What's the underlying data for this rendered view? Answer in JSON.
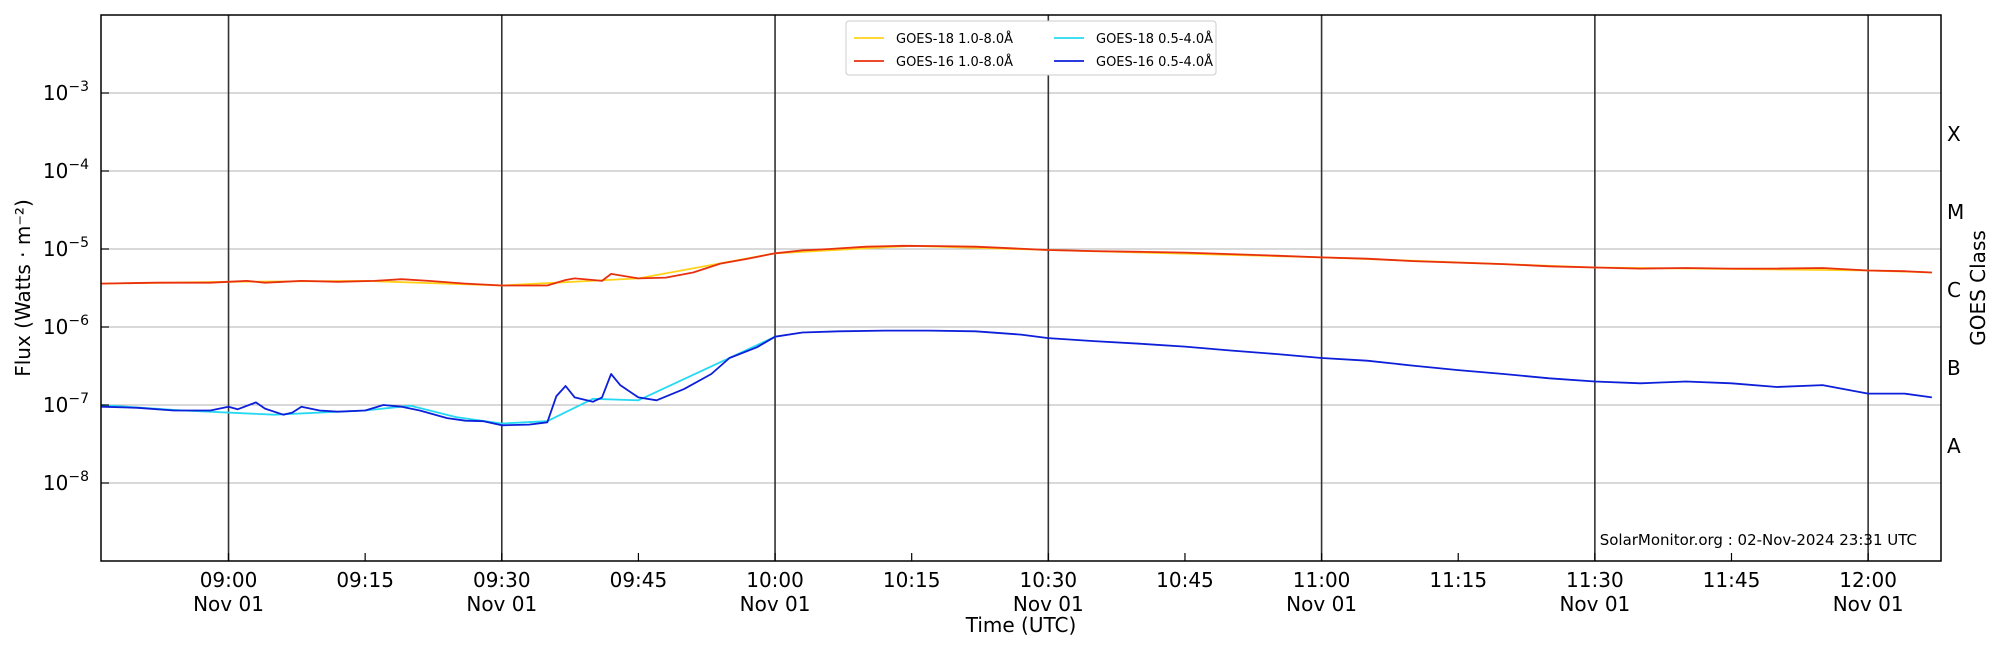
{
  "chart_data": {
    "type": "line",
    "yscale": "log",
    "ylim": [
      1e-09,
      0.01
    ],
    "xlim": [
      "2024-11-01 08:46",
      "2024-11-01 12:08"
    ],
    "xlabel": "Time (UTC)",
    "ylabel": "Flux (Watts · m⁻²)",
    "ylabel_right": "GOES Class",
    "grid": "horizontal",
    "legend_position": "top-center",
    "annotation": "SolarMonitor.org : 02-Nov-2024 23:31 UTC",
    "y_ticks": [
      {
        "value": 1e-08,
        "base": "10",
        "exp": "−8"
      },
      {
        "value": 1e-07,
        "base": "10",
        "exp": "−7"
      },
      {
        "value": 1e-06,
        "base": "10",
        "exp": "−6"
      },
      {
        "value": 1e-05,
        "base": "10",
        "exp": "−5"
      },
      {
        "value": 0.0001,
        "base": "10",
        "exp": "−4"
      },
      {
        "value": 0.001,
        "base": "10",
        "exp": "−3"
      }
    ],
    "x_ticks": [
      {
        "time": "2024-11-01 09:00",
        "label": "09:00",
        "sublabel": "Nov 01"
      },
      {
        "time": "2024-11-01 09:15",
        "label": "09:15",
        "sublabel": ""
      },
      {
        "time": "2024-11-01 09:30",
        "label": "09:30",
        "sublabel": "Nov 01"
      },
      {
        "time": "2024-11-01 09:45",
        "label": "09:45",
        "sublabel": ""
      },
      {
        "time": "2024-11-01 10:00",
        "label": "10:00",
        "sublabel": "Nov 01"
      },
      {
        "time": "2024-11-01 10:15",
        "label": "10:15",
        "sublabel": ""
      },
      {
        "time": "2024-11-01 10:30",
        "label": "10:30",
        "sublabel": "Nov 01"
      },
      {
        "time": "2024-11-01 10:45",
        "label": "10:45",
        "sublabel": ""
      },
      {
        "time": "2024-11-01 11:00",
        "label": "11:00",
        "sublabel": "Nov 01"
      },
      {
        "time": "2024-11-01 11:15",
        "label": "11:15",
        "sublabel": ""
      },
      {
        "time": "2024-11-01 11:30",
        "label": "11:30",
        "sublabel": "Nov 01"
      },
      {
        "time": "2024-11-01 11:45",
        "label": "11:45",
        "sublabel": ""
      },
      {
        "time": "2024-11-01 12:00",
        "label": "12:00",
        "sublabel": "Nov 01"
      }
    ],
    "vertical_lines": [
      "2024-11-01 09:00",
      "2024-11-01 09:30",
      "2024-11-01 10:00",
      "2024-11-01 10:30",
      "2024-11-01 11:00",
      "2024-11-01 11:30",
      "2024-11-01 12:00"
    ],
    "class_labels": [
      {
        "label": "X",
        "flux": 0.0003
      },
      {
        "label": "M",
        "flux": 3e-05
      },
      {
        "label": "C",
        "flux": 3e-06
      },
      {
        "label": "B",
        "flux": 3e-07
      },
      {
        "label": "A",
        "flux": 3e-08
      }
    ],
    "series": [
      {
        "name": "GOES-18 1.0-8.0Å",
        "color": "#ffd21a",
        "x": [
          "2024-11-01 08:46",
          "2024-11-01 09:00",
          "2024-11-01 09:15",
          "2024-11-01 09:30",
          "2024-11-01 09:45",
          "2024-11-01 10:00",
          "2024-11-01 10:15",
          "2024-11-01 10:30",
          "2024-11-01 11:00",
          "2024-11-01 11:30",
          "2024-11-01 12:00",
          "2024-11-01 12:07"
        ],
        "y": [
          3.6e-06,
          3.8e-06,
          3.9e-06,
          3.4e-06,
          4.2e-06,
          8.8e-06,
          1.1e-05,
          9.7e-06,
          7.8e-06,
          5.8e-06,
          5.3e-06,
          5e-06
        ]
      },
      {
        "name": "GOES-18 0.5-4.0Å",
        "color": "#26d9f2",
        "x": [
          "2024-11-01 08:46",
          "2024-11-01 08:55",
          "2024-11-01 09:05",
          "2024-11-01 09:15",
          "2024-11-01 09:20",
          "2024-11-01 09:25",
          "2024-11-01 09:30",
          "2024-11-01 09:35",
          "2024-11-01 09:40",
          "2024-11-01 09:45",
          "2024-11-01 10:00"
        ],
        "y": [
          1e-07,
          8.5e-08,
          7.5e-08,
          8.5e-08,
          9.8e-08,
          7e-08,
          5.8e-08,
          6.2e-08,
          1.2e-07,
          1.15e-07,
          7.5e-07
        ]
      },
      {
        "name": "GOES-16 1.0-8.0Å",
        "color": "#e8300f",
        "x": [
          "2024-11-01 08:46",
          "2024-11-01 08:52",
          "2024-11-01 08:58",
          "2024-11-01 09:00",
          "2024-11-01 09:02",
          "2024-11-01 09:04",
          "2024-11-01 09:06",
          "2024-11-01 09:08",
          "2024-11-01 09:12",
          "2024-11-01 09:16",
          "2024-11-01 09:19",
          "2024-11-01 09:22",
          "2024-11-01 09:26",
          "2024-11-01 09:30",
          "2024-11-01 09:35",
          "2024-11-01 09:37",
          "2024-11-01 09:38",
          "2024-11-01 09:40",
          "2024-11-01 09:41",
          "2024-11-01 09:42",
          "2024-11-01 09:45",
          "2024-11-01 09:48",
          "2024-11-01 09:51",
          "2024-11-01 09:54",
          "2024-11-01 09:57",
          "2024-11-01 10:00",
          "2024-11-01 10:03",
          "2024-11-01 10:06",
          "2024-11-01 10:10",
          "2024-11-01 10:14",
          "2024-11-01 10:18",
          "2024-11-01 10:22",
          "2024-11-01 10:26",
          "2024-11-01 10:30",
          "2024-11-01 10:35",
          "2024-11-01 10:40",
          "2024-11-01 10:45",
          "2024-11-01 10:50",
          "2024-11-01 10:55",
          "2024-11-01 11:00",
          "2024-11-01 11:05",
          "2024-11-01 11:10",
          "2024-11-01 11:15",
          "2024-11-01 11:20",
          "2024-11-01 11:25",
          "2024-11-01 11:30",
          "2024-11-01 11:35",
          "2024-11-01 11:40",
          "2024-11-01 11:45",
          "2024-11-01 11:50",
          "2024-11-01 11:55",
          "2024-11-01 12:00",
          "2024-11-01 12:04",
          "2024-11-01 12:07"
        ],
        "y": [
          3.6e-06,
          3.7e-06,
          3.7e-06,
          3.8e-06,
          3.9e-06,
          3.7e-06,
          3.8e-06,
          3.9e-06,
          3.8e-06,
          3.9e-06,
          4.1e-06,
          3.9e-06,
          3.6e-06,
          3.4e-06,
          3.4e-06,
          4e-06,
          4.2e-06,
          4e-06,
          3.9e-06,
          4.8e-06,
          4.2e-06,
          4.3e-06,
          5e-06,
          6.5e-06,
          7.5e-06,
          8.8e-06,
          9.6e-06,
          1e-05,
          1.07e-05,
          1.1e-05,
          1.09e-05,
          1.07e-05,
          1.02e-05,
          9.7e-06,
          9.4e-06,
          9.2e-06,
          9e-06,
          8.6e-06,
          8.2e-06,
          7.8e-06,
          7.5e-06,
          7e-06,
          6.7e-06,
          6.4e-06,
          6e-06,
          5.8e-06,
          5.6e-06,
          5.7e-06,
          5.6e-06,
          5.6e-06,
          5.7e-06,
          5.3e-06,
          5.2e-06,
          5e-06
        ]
      },
      {
        "name": "GOES-16 0.5-4.0Å",
        "color": "#0d1fd9",
        "x": [
          "2024-11-01 08:46",
          "2024-11-01 08:50",
          "2024-11-01 08:54",
          "2024-11-01 08:58",
          "2024-11-01 09:00",
          "2024-11-01 09:01",
          "2024-11-01 09:03",
          "2024-11-01 09:04",
          "2024-11-01 09:06",
          "2024-11-01 09:07",
          "2024-11-01 09:08",
          "2024-11-01 09:10",
          "2024-11-01 09:12",
          "2024-11-01 09:15",
          "2024-11-01 09:17",
          "2024-11-01 09:19",
          "2024-11-01 09:21",
          "2024-11-01 09:24",
          "2024-11-01 09:26",
          "2024-11-01 09:28",
          "2024-11-01 09:30",
          "2024-11-01 09:33",
          "2024-11-01 09:35",
          "2024-11-01 09:36",
          "2024-11-01 09:37",
          "2024-11-01 09:38",
          "2024-11-01 09:40",
          "2024-11-01 09:41",
          "2024-11-01 09:42",
          "2024-11-01 09:43",
          "2024-11-01 09:45",
          "2024-11-01 09:47",
          "2024-11-01 09:50",
          "2024-11-01 09:53",
          "2024-11-01 09:55",
          "2024-11-01 09:58",
          "2024-11-01 10:00",
          "2024-11-01 10:03",
          "2024-11-01 10:07",
          "2024-11-01 10:12",
          "2024-11-01 10:17",
          "2024-11-01 10:22",
          "2024-11-01 10:27",
          "2024-11-01 10:30",
          "2024-11-01 10:35",
          "2024-11-01 10:40",
          "2024-11-01 10:45",
          "2024-11-01 10:50",
          "2024-11-01 10:55",
          "2024-11-01 11:00",
          "2024-11-01 11:05",
          "2024-11-01 11:10",
          "2024-11-01 11:15",
          "2024-11-01 11:20",
          "2024-11-01 11:25",
          "2024-11-01 11:30",
          "2024-11-01 11:35",
          "2024-11-01 11:40",
          "2024-11-01 11:45",
          "2024-11-01 11:50",
          "2024-11-01 11:55",
          "2024-11-01 12:00",
          "2024-11-01 12:04",
          "2024-11-01 12:07"
        ],
        "y": [
          9.5e-08,
          9.2e-08,
          8.5e-08,
          8.5e-08,
          9.5e-08,
          8.8e-08,
          1.08e-07,
          9e-08,
          7.5e-08,
          8e-08,
          9.5e-08,
          8.5e-08,
          8.2e-08,
          8.5e-08,
          1e-07,
          9.5e-08,
          8.5e-08,
          6.8e-08,
          6.3e-08,
          6.2e-08,
          5.5e-08,
          5.6e-08,
          6e-08,
          1.3e-07,
          1.75e-07,
          1.25e-07,
          1.1e-07,
          1.25e-07,
          2.5e-07,
          1.8e-07,
          1.25e-07,
          1.15e-07,
          1.6e-07,
          2.5e-07,
          4e-07,
          5.5e-07,
          7.5e-07,
          8.5e-07,
          8.8e-07,
          9e-07,
          9e-07,
          8.8e-07,
          8e-07,
          7.2e-07,
          6.6e-07,
          6.1e-07,
          5.6e-07,
          5e-07,
          4.5e-07,
          4e-07,
          3.7e-07,
          3.2e-07,
          2.8e-07,
          2.5e-07,
          2.2e-07,
          2e-07,
          1.9e-07,
          2e-07,
          1.9e-07,
          1.7e-07,
          1.8e-07,
          1.4e-07,
          1.4e-07,
          1.25e-07
        ]
      }
    ]
  }
}
